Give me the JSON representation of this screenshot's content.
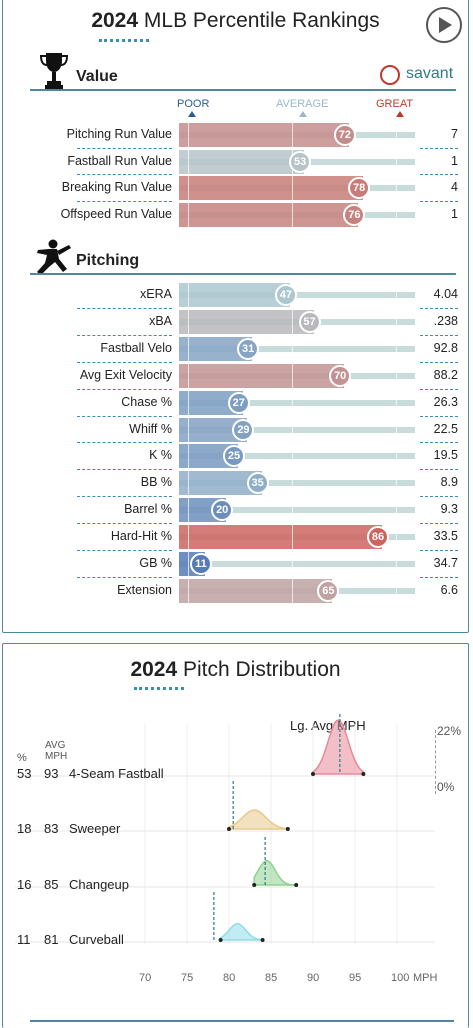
{
  "percentile": {
    "year": "2024",
    "title_rest": "MLB Percentile Rankings",
    "value_section": "Value",
    "pitching_section": "Pitching",
    "brand": "savant",
    "scale": {
      "poor": "POOR",
      "average": "AVERAGE",
      "great": "GREAT"
    },
    "value_rows": [
      {
        "label": "Pitching Run Value",
        "pct": 72,
        "value": "7"
      },
      {
        "label": "Fastball Run Value",
        "pct": 53,
        "value": "1"
      },
      {
        "label": "Breaking Run Value",
        "pct": 78,
        "value": "4"
      },
      {
        "label": "Offspeed Run Value",
        "pct": 76,
        "value": "1"
      }
    ],
    "pitching_rows": [
      {
        "label": "xERA",
        "pct": 47,
        "value": "4.04"
      },
      {
        "label": "xBA",
        "pct": 57,
        "value": ".238"
      },
      {
        "label": "Fastball Velo",
        "pct": 31,
        "value": "92.8"
      },
      {
        "label": "Avg Exit Velocity",
        "pct": 70,
        "value": "88.2"
      },
      {
        "label": "Chase %",
        "pct": 27,
        "value": "26.3"
      },
      {
        "label": "Whiff %",
        "pct": 29,
        "value": "22.5"
      },
      {
        "label": "K %",
        "pct": 25,
        "value": "19.5"
      },
      {
        "label": "BB %",
        "pct": 35,
        "value": "8.9"
      },
      {
        "label": "Barrel %",
        "pct": 20,
        "value": "9.3"
      },
      {
        "label": "Hard-Hit %",
        "pct": 86,
        "value": "33.5"
      },
      {
        "label": "GB %",
        "pct": 11,
        "value": "34.7"
      },
      {
        "label": "Extension",
        "pct": 65,
        "value": "6.6"
      }
    ]
  },
  "distribution": {
    "year": "2024",
    "title_rest": "Pitch Distribution",
    "lg_avg_label": "Lg. Avg MPH",
    "pct_header": "%",
    "avg_header_1": "AVG",
    "avg_header_2": "MPH",
    "max_label": "22%",
    "min_label": "0%",
    "axis_ticks": [
      "70",
      "75",
      "80",
      "85",
      "90",
      "95",
      "100"
    ],
    "axis_unit": "MPH",
    "pitches": [
      {
        "pct": "53",
        "mph": "93",
        "name": "4-Seam Fastball",
        "color": "#e8899a",
        "lo": 90,
        "hi": 96,
        "peak": 93,
        "lg_avg": 93.2,
        "height": 1.0
      },
      {
        "pct": "18",
        "mph": "83",
        "name": "Sweeper",
        "color": "#e8c98a",
        "lo": 80,
        "hi": 87,
        "peak": 83,
        "lg_avg": 80.5,
        "height": 0.35
      },
      {
        "pct": "16",
        "mph": "85",
        "name": "Changeup",
        "color": "#8fd08f",
        "lo": 83,
        "hi": 88,
        "peak": 84.5,
        "lg_avg": 84.3,
        "height": 0.45
      },
      {
        "pct": "11",
        "mph": "81",
        "name": "Curveball",
        "color": "#8fdbe8",
        "lo": 79,
        "hi": 84,
        "peak": 81,
        "lg_avg": 78.2,
        "height": 0.3
      }
    ]
  },
  "colors": {
    "accent": "#3a8fb0",
    "poor": "#4a6fb0",
    "average": "#b8d0d4",
    "great": "#c0392b"
  }
}
